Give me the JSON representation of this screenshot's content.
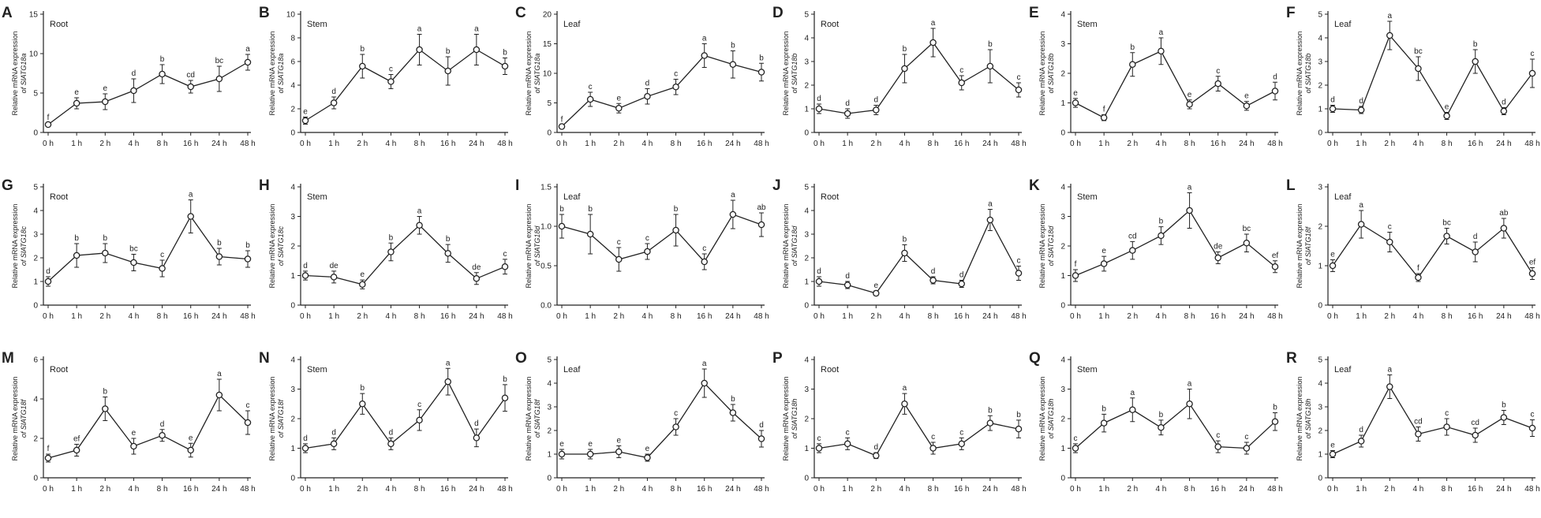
{
  "x_categories": [
    "0 h",
    "1 h",
    "2 h",
    "4 h",
    "8 h",
    "16 h",
    "24 h",
    "48 h"
  ],
  "ylabel_prefix": "Relative mRNA expression",
  "chart_data": [
    {
      "type": "line",
      "panel": "A",
      "tissue": "Root",
      "gene": "of SlATG18a",
      "ylim": [
        0,
        15
      ],
      "yticks": [
        0,
        5,
        10,
        15
      ],
      "values": [
        1,
        3.7,
        3.9,
        5.3,
        7.4,
        5.8,
        6.8,
        8.9
      ],
      "errors": [
        0.2,
        0.7,
        1.0,
        1.5,
        1.2,
        0.8,
        1.6,
        1.0
      ],
      "letters": [
        "f",
        "e",
        "e",
        "d",
        "b",
        "cd",
        "bc",
        "a"
      ]
    },
    {
      "type": "line",
      "panel": "B",
      "tissue": "Stem",
      "gene": "of SlATG18a",
      "ylim": [
        0,
        10
      ],
      "yticks": [
        0,
        2,
        4,
        6,
        8,
        10
      ],
      "values": [
        1,
        2.5,
        5.6,
        4.3,
        7.0,
        5.2,
        7.0,
        5.6
      ],
      "errors": [
        0.3,
        0.5,
        1.0,
        0.6,
        1.3,
        1.2,
        1.3,
        0.7
      ],
      "letters": [
        "e",
        "d",
        "b",
        "c",
        "a",
        "b",
        "a",
        "b"
      ]
    },
    {
      "type": "line",
      "panel": "C",
      "tissue": "Leaf",
      "gene": "of SlATG18a",
      "ylim": [
        0,
        20
      ],
      "yticks": [
        0,
        5,
        10,
        15,
        20
      ],
      "values": [
        1,
        5.6,
        4.1,
        6.1,
        7.7,
        13.0,
        11.5,
        10.2
      ],
      "errors": [
        0.3,
        1.2,
        0.8,
        1.3,
        1.3,
        2.0,
        2.3,
        1.5
      ],
      "letters": [
        "f",
        "c",
        "e",
        "d",
        "c",
        "a",
        "b",
        "b"
      ]
    },
    {
      "type": "line",
      "panel": "D",
      "tissue": "Root",
      "gene": "of SlATG18b",
      "ylim": [
        0,
        5
      ],
      "yticks": [
        0,
        1,
        2,
        3,
        4,
        5
      ],
      "values": [
        1,
        0.8,
        0.95,
        2.7,
        3.8,
        2.1,
        2.8,
        1.8
      ],
      "errors": [
        0.2,
        0.2,
        0.2,
        0.6,
        0.6,
        0.3,
        0.7,
        0.3
      ],
      "letters": [
        "d",
        "d",
        "d",
        "b",
        "a",
        "c",
        "b",
        "c"
      ]
    },
    {
      "type": "line",
      "panel": "E",
      "tissue": "Stem",
      "gene": "of SlATG18b",
      "ylim": [
        0,
        4
      ],
      "yticks": [
        0,
        1,
        2,
        3,
        4
      ],
      "values": [
        1,
        0.5,
        2.3,
        2.75,
        0.95,
        1.65,
        0.9,
        1.4
      ],
      "errors": [
        0.15,
        0.1,
        0.4,
        0.45,
        0.15,
        0.25,
        0.15,
        0.3
      ],
      "letters": [
        "e",
        "f",
        "b",
        "a",
        "e",
        "c",
        "e",
        "d"
      ]
    },
    {
      "type": "line",
      "panel": "F",
      "tissue": "Leaf",
      "gene": "of SlATG18b",
      "ylim": [
        0,
        5
      ],
      "yticks": [
        0,
        1,
        2,
        3,
        4,
        5
      ],
      "values": [
        1,
        0.95,
        4.1,
        2.7,
        0.7,
        3.0,
        0.9,
        2.5
      ],
      "errors": [
        0.15,
        0.15,
        0.6,
        0.5,
        0.15,
        0.5,
        0.15,
        0.6
      ],
      "letters": [
        "d",
        "d",
        "a",
        "bc",
        "e",
        "b",
        "d",
        "c"
      ]
    },
    {
      "type": "line",
      "panel": "G",
      "tissue": "Root",
      "gene": "of SlATG18c",
      "ylim": [
        0,
        5
      ],
      "yticks": [
        0,
        1,
        2,
        3,
        4,
        5
      ],
      "values": [
        1,
        2.1,
        2.2,
        1.8,
        1.55,
        3.75,
        2.05,
        1.95
      ],
      "errors": [
        0.2,
        0.5,
        0.4,
        0.35,
        0.35,
        0.7,
        0.35,
        0.35
      ],
      "letters": [
        "d",
        "b",
        "b",
        "bc",
        "c",
        "a",
        "b",
        "b"
      ]
    },
    {
      "type": "line",
      "panel": "H",
      "tissue": "Stem",
      "gene": "of SlATG18c",
      "ylim": [
        0,
        4
      ],
      "yticks": [
        0,
        1,
        2,
        3,
        4
      ],
      "values": [
        1,
        0.95,
        0.7,
        1.8,
        2.7,
        1.75,
        0.9,
        1.3
      ],
      "errors": [
        0.15,
        0.2,
        0.15,
        0.3,
        0.3,
        0.3,
        0.2,
        0.25
      ],
      "letters": [
        "d",
        "de",
        "e",
        "b",
        "a",
        "b",
        "de",
        "c"
      ]
    },
    {
      "type": "line",
      "panel": "I",
      "tissue": "Leaf",
      "gene": "of SlATG18d",
      "ylim": [
        0,
        1.5
      ],
      "yticks": [
        0.0,
        0.5,
        1.0,
        1.5
      ],
      "values": [
        1.0,
        0.9,
        0.58,
        0.68,
        0.95,
        0.55,
        1.15,
        1.02
      ],
      "errors": [
        0.15,
        0.25,
        0.15,
        0.1,
        0.2,
        0.1,
        0.18,
        0.15
      ],
      "letters": [
        "b",
        "b",
        "c",
        "c",
        "b",
        "c",
        "a",
        "ab"
      ]
    },
    {
      "type": "line",
      "panel": "J",
      "tissue": "Root",
      "gene": "of SlATG18d",
      "ylim": [
        0,
        5
      ],
      "yticks": [
        0,
        1,
        2,
        3,
        4,
        5
      ],
      "values": [
        1,
        0.85,
        0.5,
        2.2,
        1.05,
        0.9,
        3.6,
        1.35
      ],
      "errors": [
        0.2,
        0.15,
        0.1,
        0.35,
        0.15,
        0.15,
        0.45,
        0.3
      ],
      "letters": [
        "d",
        "d",
        "e",
        "b",
        "d",
        "d",
        "a",
        "c"
      ]
    },
    {
      "type": "line",
      "panel": "K",
      "tissue": "Stem",
      "gene": "of SlATG18d",
      "ylim": [
        0,
        4
      ],
      "yticks": [
        0,
        1,
        2,
        3,
        4
      ],
      "values": [
        1,
        1.4,
        1.85,
        2.35,
        3.2,
        1.6,
        2.1,
        1.3
      ],
      "errors": [
        0.2,
        0.25,
        0.3,
        0.3,
        0.6,
        0.2,
        0.3,
        0.2
      ],
      "letters": [
        "f",
        "e",
        "cd",
        "b",
        "a",
        "de",
        "bc",
        "ef"
      ]
    },
    {
      "type": "line",
      "panel": "L",
      "tissue": "Leaf",
      "gene": "of SlATG18f",
      "ylim": [
        0,
        3
      ],
      "yticks": [
        0,
        1,
        2,
        3
      ],
      "values": [
        1,
        2.05,
        1.6,
        0.7,
        1.75,
        1.35,
        1.95,
        0.8
      ],
      "errors": [
        0.15,
        0.35,
        0.25,
        0.1,
        0.2,
        0.25,
        0.25,
        0.15
      ],
      "letters": [
        "e",
        "a",
        "c",
        "f",
        "bc",
        "d",
        "ab",
        "ef"
      ]
    },
    {
      "type": "line",
      "panel": "M",
      "tissue": "Root",
      "gene": "of SlATG18f",
      "ylim": [
        0,
        6
      ],
      "yticks": [
        0,
        2,
        4,
        6
      ],
      "values": [
        1,
        1.4,
        3.5,
        1.6,
        2.15,
        1.4,
        4.2,
        2.8
      ],
      "errors": [
        0.2,
        0.3,
        0.6,
        0.4,
        0.3,
        0.35,
        0.8,
        0.6
      ],
      "letters": [
        "f",
        "ef",
        "b",
        "e",
        "d",
        "e",
        "a",
        "c"
      ]
    },
    {
      "type": "line",
      "panel": "N",
      "tissue": "Stem",
      "gene": "of SlATG18f",
      "ylim": [
        0,
        4
      ],
      "yticks": [
        0,
        1,
        2,
        3,
        4
      ],
      "values": [
        1,
        1.15,
        2.5,
        1.15,
        1.95,
        3.25,
        1.35,
        2.7
      ],
      "errors": [
        0.15,
        0.2,
        0.35,
        0.2,
        0.35,
        0.45,
        0.3,
        0.45
      ],
      "letters": [
        "d",
        "d",
        "b",
        "d",
        "c",
        "a",
        "d",
        "b"
      ]
    },
    {
      "type": "line",
      "panel": "O",
      "tissue": "Leaf",
      "gene": "of SlATG18f",
      "ylim": [
        0,
        5
      ],
      "yticks": [
        0,
        1,
        2,
        3,
        4,
        5
      ],
      "values": [
        1,
        1.0,
        1.1,
        0.85,
        2.15,
        4.0,
        2.75,
        1.65
      ],
      "errors": [
        0.2,
        0.2,
        0.25,
        0.15,
        0.35,
        0.6,
        0.35,
        0.35
      ],
      "letters": [
        "e",
        "e",
        "e",
        "e",
        "c",
        "a",
        "b",
        "d"
      ]
    },
    {
      "type": "line",
      "panel": "P",
      "tissue": "Root",
      "gene": "of SlATG18h",
      "ylim": [
        0,
        4
      ],
      "yticks": [
        0,
        1,
        2,
        3,
        4
      ],
      "values": [
        1,
        1.15,
        0.75,
        2.5,
        1.0,
        1.15,
        1.85,
        1.65
      ],
      "errors": [
        0.15,
        0.2,
        0.1,
        0.35,
        0.2,
        0.2,
        0.25,
        0.3
      ],
      "letters": [
        "c",
        "c",
        "d",
        "a",
        "c",
        "c",
        "b",
        "b"
      ]
    },
    {
      "type": "line",
      "panel": "Q",
      "tissue": "Stem",
      "gene": "of SlATG18h",
      "ylim": [
        0,
        4
      ],
      "yticks": [
        0,
        1,
        2,
        3,
        4
      ],
      "values": [
        1,
        1.85,
        2.3,
        1.7,
        2.5,
        1.05,
        1.0,
        1.9
      ],
      "errors": [
        0.15,
        0.3,
        0.4,
        0.25,
        0.5,
        0.2,
        0.2,
        0.3
      ],
      "letters": [
        "c",
        "b",
        "a",
        "b",
        "a",
        "c",
        "c",
        "b"
      ]
    },
    {
      "type": "line",
      "panel": "R",
      "tissue": "Leaf",
      "gene": "of SlATG18h",
      "ylim": [
        0,
        5
      ],
      "yticks": [
        0,
        1,
        2,
        3,
        4,
        5
      ],
      "values": [
        1,
        1.55,
        3.85,
        1.85,
        2.15,
        1.8,
        2.55,
        2.1
      ],
      "errors": [
        0.15,
        0.25,
        0.5,
        0.3,
        0.35,
        0.3,
        0.3,
        0.35
      ],
      "letters": [
        "e",
        "d",
        "a",
        "cd",
        "c",
        "cd",
        "b",
        "c"
      ]
    }
  ]
}
